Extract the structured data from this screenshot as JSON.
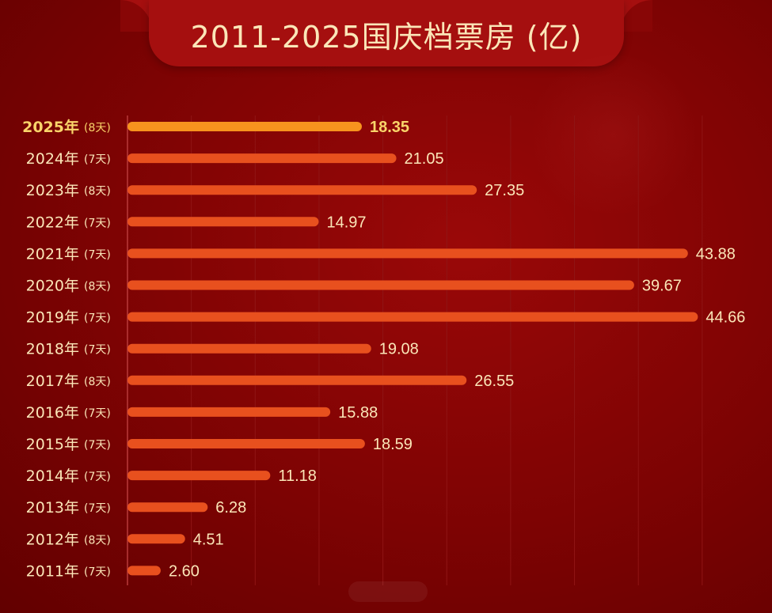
{
  "title": "2011-2025国庆档票房 (亿)",
  "chart_data": {
    "type": "bar",
    "orientation": "horizontal",
    "title": "2011-2025国庆档票房 (亿)",
    "xlim": [
      0,
      45
    ],
    "grid": true,
    "categories": [
      "2025年",
      "2024年",
      "2023年",
      "2022年",
      "2021年",
      "2020年",
      "2019年",
      "2018年",
      "2017年",
      "2016年",
      "2015年",
      "2014年",
      "2013年",
      "2012年",
      "2011年"
    ],
    "durations": [
      "(8天)",
      "(7天)",
      "(8天)",
      "(7天)",
      "(7天)",
      "(8天)",
      "(7天)",
      "(7天)",
      "(8天)",
      "(7天)",
      "(7天)",
      "(7天)",
      "(7天)",
      "(8天)",
      "(7天)"
    ],
    "values": [
      18.35,
      21.05,
      27.35,
      14.97,
      43.88,
      39.67,
      44.66,
      19.08,
      26.55,
      15.88,
      18.59,
      11.18,
      6.28,
      4.51,
      2.6
    ],
    "value_labels": [
      "18.35",
      "21.05",
      "27.35",
      "14.97",
      "43.88",
      "39.67",
      "44.66",
      "19.08",
      "26.55",
      "15.88",
      "18.59",
      "11.18",
      "6.28",
      "4.51",
      "2.60"
    ],
    "highlight_index": 0,
    "colors": {
      "bar": "#e8501e",
      "bar_highlight": "#f7931e",
      "label": "#fbe6b8",
      "label_highlight": "#f9d46a",
      "grid": "#8f1515",
      "axis": "#b83a3a"
    }
  }
}
